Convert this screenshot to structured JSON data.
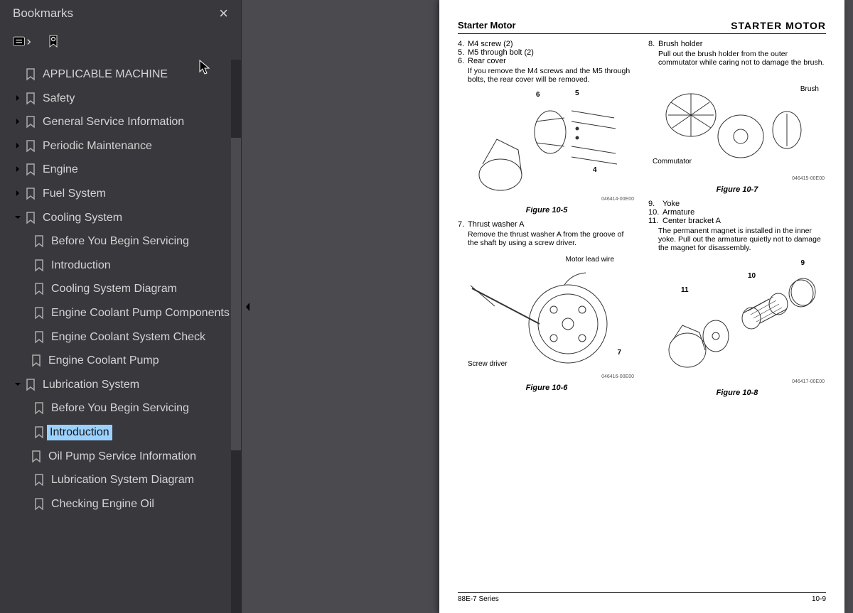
{
  "sidebar": {
    "title": "Bookmarks",
    "items": [
      {
        "label": "APPLICABLE MACHINE",
        "level": 1,
        "expand": null
      },
      {
        "label": "Safety",
        "level": 1,
        "expand": "right"
      },
      {
        "label": "General Service Information",
        "level": 1,
        "expand": "right"
      },
      {
        "label": "Periodic Maintenance",
        "level": 1,
        "expand": "right"
      },
      {
        "label": "Engine",
        "level": 1,
        "expand": "right"
      },
      {
        "label": "Fuel System",
        "level": 1,
        "expand": "right"
      },
      {
        "label": "Cooling System",
        "level": 1,
        "expand": "down"
      },
      {
        "label": "Before You Begin Servicing",
        "level": 2,
        "expand": null
      },
      {
        "label": "Introduction",
        "level": 2,
        "expand": null
      },
      {
        "label": "Cooling System Diagram",
        "level": 2,
        "expand": null
      },
      {
        "label": "Engine Coolant Pump Components",
        "level": 2,
        "expand": null
      },
      {
        "label": "Engine Coolant System Check",
        "level": 2,
        "expand": null
      },
      {
        "label": "Engine Coolant Pump",
        "level": 2,
        "expand": "right",
        "hasExpand": true
      },
      {
        "label": "Lubrication System",
        "level": 1,
        "expand": "down"
      },
      {
        "label": "Before You Begin Servicing",
        "level": 2,
        "expand": null
      },
      {
        "label": "Introduction",
        "level": 2,
        "expand": null,
        "selected": true
      },
      {
        "label": "Oil Pump Service Information",
        "level": 2,
        "expand": "right",
        "hasExpand": true
      },
      {
        "label": "Lubrication System Diagram",
        "level": 2,
        "expand": null
      },
      {
        "label": "Checking Engine Oil",
        "level": 2,
        "expand": null
      }
    ]
  },
  "page": {
    "header_left": "Starter Motor",
    "header_right": "STARTER MOTOR",
    "left_steps": [
      {
        "n": "4.",
        "t": "M4 screw (2)"
      },
      {
        "n": "5.",
        "t": "M5 through bolt (2)"
      },
      {
        "n": "6.",
        "t": "Rear cover"
      }
    ],
    "left_note_1": "If you remove the M4 screws and the M5 through bolts, the rear cover will be removed.",
    "fig5_caption": "Figure 10-5",
    "fig5_code": "046414-00E00",
    "left_step7_n": "7.",
    "left_step7_t": "Thrust washer A",
    "left_note_2": "Remove the thrust washer A from the groove of the shaft by using a screw driver.",
    "fig6_caption": "Figure 10-6",
    "fig6_code": "046416-00E00",
    "fig6_callouts": {
      "motor_lead": "Motor lead wire",
      "screw": "Screw driver",
      "seven": "7"
    },
    "right_step8_n": "8.",
    "right_step8_t": "Brush holder",
    "right_note_1": "Pull out the brush holder from the outer commutator while caring not to damage the brush.",
    "fig7_caption": "Figure 10-7",
    "fig7_code": "046415-00E00",
    "fig7_callouts": {
      "brush": "Brush",
      "commutator": "Commutator"
    },
    "right_steps_b": [
      {
        "n": "9.",
        "t": "Yoke"
      },
      {
        "n": "10.",
        "t": "Armature"
      },
      {
        "n": "11.",
        "t": "Center bracket A"
      }
    ],
    "right_note_2": "The permanent magnet is installed in the inner yoke. Pull out the armature quietly not to damage the magnet for disassembly.",
    "fig8_caption": "Figure 10-8",
    "fig8_code": "046417-00E00",
    "fig8_callouts": {
      "nine": "9",
      "ten": "10",
      "eleven": "11"
    },
    "fig5_callouts": {
      "four": "4",
      "five": "5",
      "six": "6"
    },
    "footer_left": "88E-7 Series",
    "footer_right": "10-9"
  }
}
